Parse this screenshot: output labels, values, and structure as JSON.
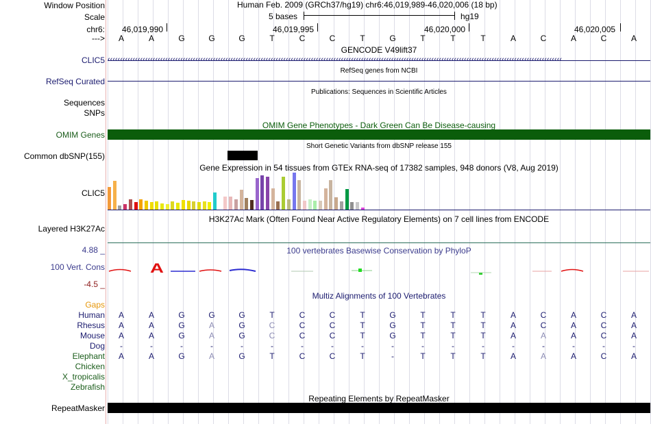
{
  "header": {
    "window_position_label": "Window Position",
    "assembly_title": "Human Feb. 2009 (GRCh37/hg19)   chr6:46,019,989-46,020,006 (18 bp)",
    "scale_label": "Scale",
    "scale_text": "5 bases",
    "scale_db": "hg19",
    "chrom_label": "chr6:",
    "coords": [
      "46,019,990",
      "46,019,995",
      "46,020,000",
      "46,020,005"
    ],
    "strand_label": "--->",
    "dna": [
      "A",
      "A",
      "G",
      "G",
      "G",
      "T",
      "C",
      "C",
      "T",
      "G",
      "T",
      "T",
      "T",
      "A",
      "C",
      "A",
      "C",
      "A"
    ]
  },
  "tracks": {
    "gencode": {
      "title": "GENCODE V49lift37",
      "label": "CLIC5",
      "color": "#1a1a6e"
    },
    "refseq": {
      "title": "RefSeq genes from NCBI",
      "label": "RefSeq Curated",
      "color": "#1a1a6e"
    },
    "publications": {
      "title": "Publications: Sequences in Scientific Articles",
      "label1": "Sequences",
      "label2": "SNPs"
    },
    "omim": {
      "title": "OMIM Gene Phenotypes - Dark Green Can Be Disease-causing",
      "label": "OMIM Genes",
      "color": "#0b5d0b"
    },
    "dbsnp": {
      "title": "Short Genetic Variants from dbSNP release 155",
      "label": "Common dbSNP(155)"
    },
    "gtex": {
      "title": "Gene Expression in 54 tissues from GTEx RNA-seq of 17382 samples, 948 donors (V8, Aug 2019)",
      "label": "CLIC5",
      "bars": [
        {
          "h": 0.62,
          "c": "#f39a3a"
        },
        {
          "h": 0.78,
          "c": "#f6b14a"
        },
        {
          "h": 0.12,
          "c": "#a0a0a0"
        },
        {
          "h": 0.14,
          "c": "#cc3366"
        },
        {
          "h": 0.28,
          "c": "#b05050"
        },
        {
          "h": 0.2,
          "c": "#e01010"
        },
        {
          "h": 0.28,
          "c": "#f4a400"
        },
        {
          "h": 0.24,
          "c": "#f0c800"
        },
        {
          "h": 0.2,
          "c": "#f0dc00"
        },
        {
          "h": 0.22,
          "c": "#e8e000"
        },
        {
          "h": 0.16,
          "c": "#e8e810"
        },
        {
          "h": 0.14,
          "c": "#f0f030"
        },
        {
          "h": 0.22,
          "c": "#ddd820"
        },
        {
          "h": 0.18,
          "c": "#e8e800"
        },
        {
          "h": 0.26,
          "c": "#f0e000"
        },
        {
          "h": 0.24,
          "c": "#e8d800"
        },
        {
          "h": 0.22,
          "c": "#d8d030"
        },
        {
          "h": 0.2,
          "c": "#e0dc10"
        },
        {
          "h": 0.22,
          "c": "#e8e020"
        },
        {
          "h": 0.2,
          "c": "#f0f000"
        },
        {
          "h": 0.46,
          "c": "#22cccc"
        },
        {
          "h": 0.0,
          "c": "#ffffff"
        },
        {
          "h": 0.36,
          "c": "#f4c8c8"
        },
        {
          "h": 0.36,
          "c": "#e8b8b8"
        },
        {
          "h": 0.28,
          "c": "#c8a0a0"
        },
        {
          "h": 0.54,
          "c": "#d4b49c"
        },
        {
          "h": 0.32,
          "c": "#a08060"
        },
        {
          "h": 0.26,
          "c": "#503020"
        },
        {
          "h": 0.86,
          "c": "#9966cc"
        },
        {
          "h": 0.92,
          "c": "#7744aa"
        },
        {
          "h": 0.88,
          "c": "#8844aa"
        },
        {
          "h": 0.58,
          "c": "#d4b49c"
        },
        {
          "h": 0.22,
          "c": "#9a7050"
        },
        {
          "h": 0.88,
          "c": "#aacc33"
        },
        {
          "h": 0.28,
          "c": "#bbbb80"
        },
        {
          "h": 1.0,
          "c": "#7777ee"
        },
        {
          "h": 0.8,
          "c": "#c8b4a0"
        },
        {
          "h": 0.24,
          "c": "#f0c8c8"
        },
        {
          "h": 0.28,
          "c": "#c8f0c8"
        },
        {
          "h": 0.24,
          "c": "#aaeeaa"
        },
        {
          "h": 0.24,
          "c": "#d8c8b8"
        },
        {
          "h": 0.58,
          "c": "#d4b49c"
        },
        {
          "h": 0.8,
          "c": "#c8b4a0"
        },
        {
          "h": 0.34,
          "c": "#c8a88c"
        },
        {
          "h": 0.22,
          "c": "#a0a0a0"
        },
        {
          "h": 0.56,
          "c": "#009944"
        },
        {
          "h": 0.2,
          "c": "#909090"
        },
        {
          "h": 0.2,
          "c": "#c8c8c8"
        },
        {
          "h": 0.06,
          "c": "#dd44dd"
        }
      ]
    },
    "h3k27ac": {
      "title": "H3K27Ac Mark (Often Found Near Active Regulatory Elements) on 7 cell lines from ENCODE",
      "label": "Layered H3K27Ac"
    },
    "conservation": {
      "title": "100 vertebrates Basewise Conservation by PhyloP",
      "label": "100 Vert. Cons",
      "ymax": "4.88 _",
      "ymin": "-4.5 _"
    },
    "multiz": {
      "title": "Multiz Alignments of 100 Vertebrates",
      "gaps_label": "Gaps",
      "species": [
        {
          "name": "Human",
          "seq": [
            "A",
            "A",
            "G",
            "G",
            "G",
            "T",
            "C",
            "C",
            "T",
            "G",
            "T",
            "T",
            "T",
            "A",
            "C",
            "A",
            "C",
            "A"
          ],
          "faint": []
        },
        {
          "name": "Rhesus",
          "seq": [
            "A",
            "A",
            "G",
            "A",
            "G",
            "C",
            "C",
            "C",
            "T",
            "G",
            "T",
            "T",
            "T",
            "A",
            "C",
            "A",
            "C",
            "A"
          ],
          "faint": [
            3,
            5
          ]
        },
        {
          "name": "Mouse",
          "seq": [
            "A",
            "A",
            "G",
            "A",
            "G",
            "C",
            "C",
            "C",
            "T",
            "G",
            "T",
            "T",
            "T",
            "A",
            "A",
            "A",
            "C",
            "A"
          ],
          "faint": [
            3,
            5,
            14
          ]
        },
        {
          "name": "Dog",
          "seq": [
            "-",
            "-",
            "-",
            "-",
            "-",
            "-",
            "-",
            "-",
            "-",
            "-",
            "-",
            "-",
            "-",
            "-",
            "-",
            "-",
            "-",
            "-"
          ],
          "faint": []
        },
        {
          "name": "Elephant",
          "seq": [
            "A",
            "A",
            "G",
            "A",
            "G",
            "T",
            "C",
            "C",
            "T",
            "-",
            "T",
            "T",
            "T",
            "A",
            "A",
            "A",
            "C",
            "A"
          ],
          "faint": [
            3,
            14
          ]
        },
        {
          "name": "Chicken",
          "seq": [],
          "faint": []
        },
        {
          "name": "X_tropicalis",
          "seq": [],
          "faint": []
        },
        {
          "name": "Zebrafish",
          "seq": [],
          "faint": []
        }
      ]
    },
    "repeatmasker": {
      "title": "Repeating Elements by RepeatMasker",
      "label": "RepeatMasker"
    }
  },
  "colors": {
    "navy": "#1a1a6e",
    "green": "#1a5c1a",
    "omim_green": "#0b5d0b",
    "cons_blue": "#3a3a8c",
    "cons_red": "#8c1a1a",
    "gaps_orange": "#e6960a"
  }
}
